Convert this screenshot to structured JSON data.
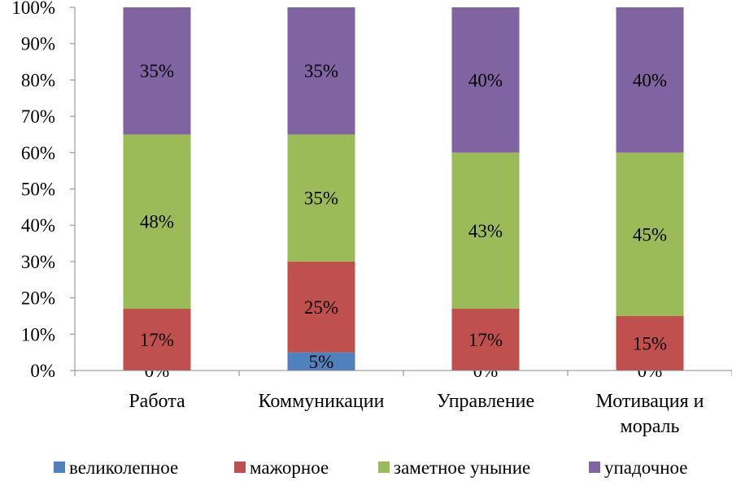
{
  "chart_data": {
    "type": "bar",
    "stacked": true,
    "percent_stacked": true,
    "title": "",
    "xlabel": "",
    "ylabel": "",
    "ylim": [
      0,
      100
    ],
    "y_ticks": [
      "0%",
      "10%",
      "20%",
      "30%",
      "40%",
      "50%",
      "60%",
      "70%",
      "80%",
      "90%",
      "100%"
    ],
    "grid": false,
    "legend_position": "bottom",
    "categories": [
      [
        "Работа"
      ],
      [
        "Коммуникации"
      ],
      [
        "Управление"
      ],
      [
        "Мотивация и",
        "мораль"
      ]
    ],
    "series": [
      {
        "name": "великолепное",
        "color": "#4f81bd",
        "values": [
          0,
          5,
          0,
          0
        ],
        "labels": [
          "0%",
          "5%",
          "0%",
          "0%"
        ]
      },
      {
        "name": "мажорное",
        "color": "#c0504d",
        "values": [
          17,
          25,
          17,
          15
        ],
        "labels": [
          "17%",
          "25%",
          "17%",
          "15%"
        ]
      },
      {
        "name": "заметное уныние",
        "color": "#9bbb59",
        "values": [
          48,
          35,
          43,
          45
        ],
        "labels": [
          "48%",
          "35%",
          "43%",
          "45%"
        ]
      },
      {
        "name": "упадочное",
        "color": "#8064a2",
        "values": [
          35,
          35,
          40,
          40
        ],
        "labels": [
          "35%",
          "35%",
          "40%",
          "40%"
        ]
      }
    ]
  }
}
